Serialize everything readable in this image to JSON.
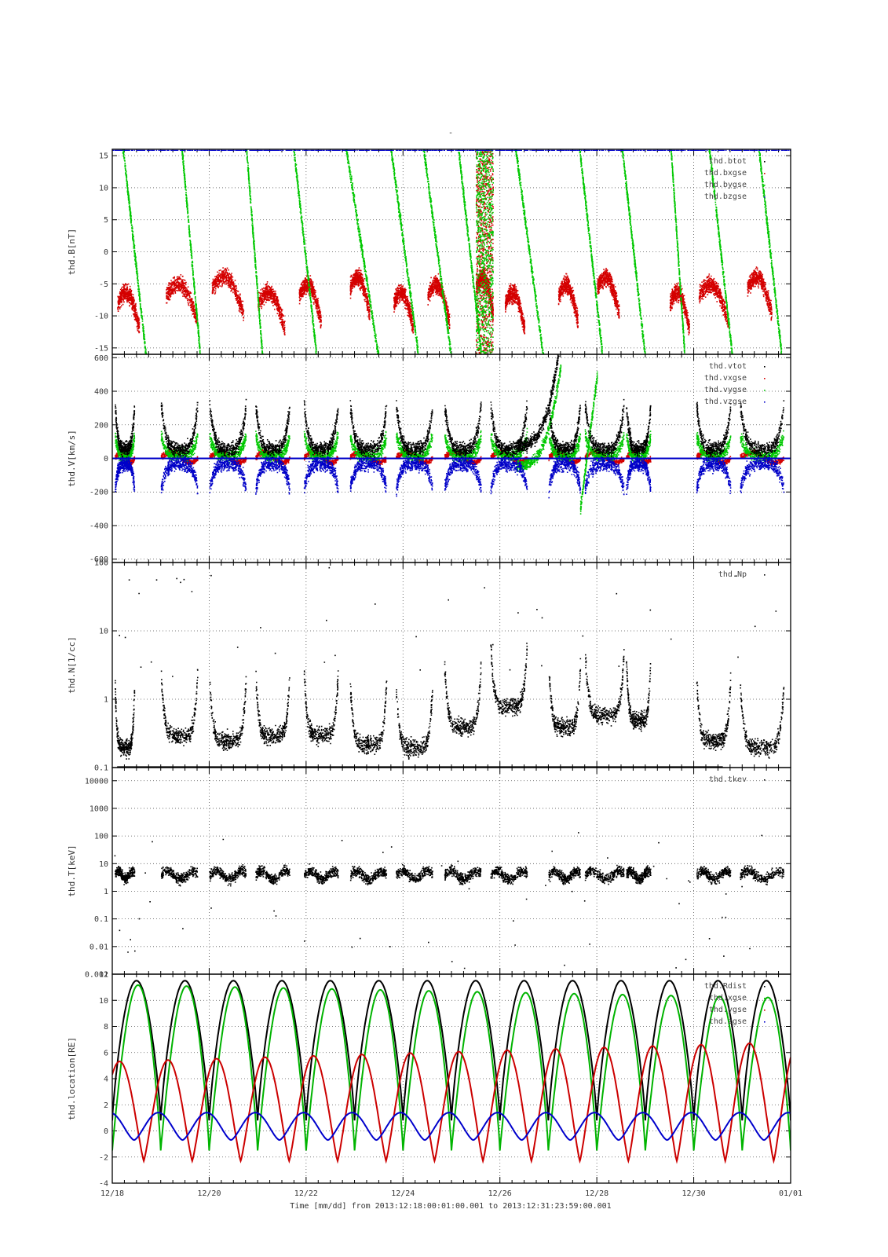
{
  "figure": {
    "title": "-",
    "xlabel": "Time [mm/dd]  from 2013:12:18:00:01:00.001  to  2013:12:31:23:59:00.001",
    "x_tick_labels": [
      "12/18",
      "12/20",
      "12/22",
      "12/24",
      "12/26",
      "12/28",
      "12/30",
      "01/01"
    ]
  },
  "chart_data": [
    {
      "type": "scatter",
      "ylabel": "thd.B[nT]",
      "ylim": [
        -16,
        16
      ],
      "yscale": "linear",
      "y_ticks": [
        15,
        10,
        5,
        0,
        -5,
        -10,
        -15
      ],
      "grid": true,
      "legend_position": "top-right",
      "x": [
        "12/18",
        "12/20",
        "12/22",
        "12/24",
        "12/26",
        "12/28",
        "12/30",
        "01/01"
      ],
      "series": [
        {
          "name": "thd.btot",
          "color": "#000000"
        },
        {
          "name": "thd.bxgse",
          "color": "#d40000"
        },
        {
          "name": "thd.bygse",
          "color": "#00c800"
        },
        {
          "name": "thd.bzgse",
          "color": "#0000c8"
        }
      ]
    },
    {
      "type": "scatter",
      "ylabel": "thd.V[km/s]",
      "ylim": [
        -620,
        620
      ],
      "yscale": "linear",
      "y_ticks": [
        600,
        400,
        200,
        0,
        -200,
        -400,
        -600
      ],
      "grid": true,
      "legend_position": "top-right",
      "series": [
        {
          "name": "thd.vtot",
          "color": "#000000"
        },
        {
          "name": "thd.vxgse",
          "color": "#d40000"
        },
        {
          "name": "thd.vygse",
          "color": "#00c800"
        },
        {
          "name": "thd.vzgse",
          "color": "#0000c8"
        }
      ]
    },
    {
      "type": "scatter",
      "ylabel": "thd.N[1/cc]",
      "ylim": [
        0.1,
        100
      ],
      "yscale": "log",
      "y_ticks": [
        100,
        10,
        1,
        0.1
      ],
      "y_tick_labels": [
        "100",
        "10",
        "1",
        "0.1"
      ],
      "grid": true,
      "legend_position": "top-right",
      "series": [
        {
          "name": "thd.Np",
          "color": "#000000"
        }
      ]
    },
    {
      "type": "scatter",
      "ylabel": "thd.T[keV]",
      "ylim": [
        0.001,
        30000
      ],
      "yscale": "log",
      "y_ticks": [
        10000,
        1000,
        100,
        10,
        1,
        0.1,
        0.01,
        0.001
      ],
      "y_tick_labels": [
        "10000",
        "1000",
        "100",
        "10",
        "1",
        "0.1",
        "0.01",
        "0.001"
      ],
      "grid": true,
      "legend_position": "top-right",
      "series": [
        {
          "name": "thd.tkev",
          "color": "#000000"
        }
      ]
    },
    {
      "type": "line",
      "ylabel": "thd.location[RE]",
      "ylim": [
        -4,
        12
      ],
      "yscale": "linear",
      "y_ticks": [
        12,
        10,
        8,
        6,
        4,
        2,
        0,
        -2,
        -4
      ],
      "grid": true,
      "legend_position": "top-right",
      "orbit_period_days": 1.0,
      "series": [
        {
          "name": "thd.Rdist",
          "color": "#000000",
          "min": 0.8,
          "max": 11.5
        },
        {
          "name": "thd.xgse",
          "color": "#00b400",
          "min": -1.5,
          "max": 11.2
        },
        {
          "name": "thd.ygse",
          "color": "#cc0000",
          "min": -2.3,
          "max": 5.3,
          "max_end": 6.8
        },
        {
          "name": "thd.zgse",
          "color": "#0000cc",
          "min": -0.7,
          "max": 1.4
        }
      ]
    }
  ]
}
